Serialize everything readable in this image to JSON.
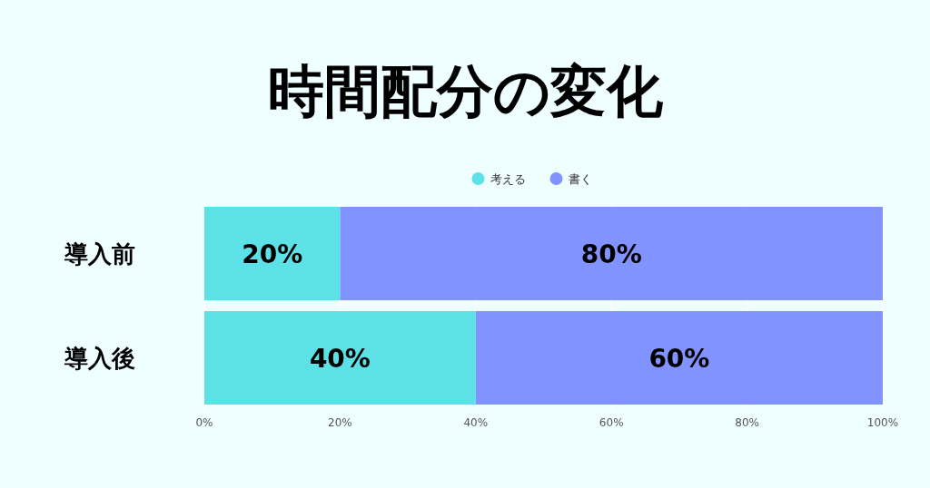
{
  "chart_data": {
    "type": "bar",
    "orientation": "horizontal",
    "stacked": true,
    "title": "時間配分の変化",
    "categories": [
      "導入前",
      "導入後"
    ],
    "series": [
      {
        "name": "考える",
        "color": "#5ce1e6",
        "values": [
          20,
          40
        ],
        "value_labels": [
          "20%",
          "40%"
        ]
      },
      {
        "name": "書く",
        "color": "#8093ff",
        "values": [
          80,
          60
        ],
        "value_labels": [
          "80%",
          "60%"
        ]
      }
    ],
    "xlim": [
      0,
      100
    ],
    "xticks": [
      {
        "value": 0,
        "label": "0%"
      },
      {
        "value": 20,
        "label": "20%"
      },
      {
        "value": 40,
        "label": "40%"
      },
      {
        "value": 60,
        "label": "60%"
      },
      {
        "value": 80,
        "label": "80%"
      },
      {
        "value": 100,
        "label": "100%"
      }
    ],
    "grid": "x",
    "legend": "top"
  }
}
